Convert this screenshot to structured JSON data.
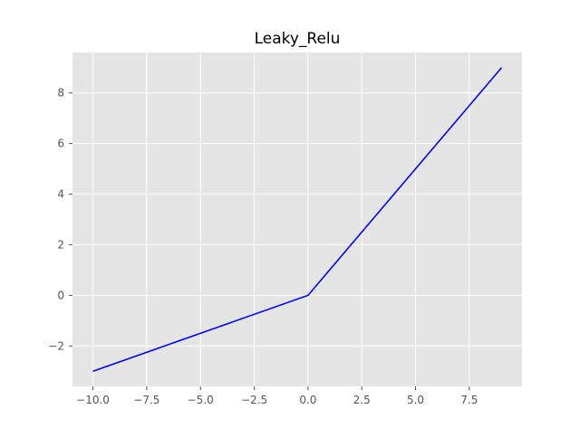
{
  "chart_data": {
    "type": "line",
    "title": "Leaky_Relu",
    "xlabel": "",
    "ylabel": "",
    "x_range": [
      -10.95,
      9.95
    ],
    "y_range": [
      -3.6,
      9.6
    ],
    "x_ticks": [
      -10.0,
      -7.5,
      -5.0,
      -2.5,
      0.0,
      2.5,
      5.0,
      7.5
    ],
    "x_tick_labels": [
      "−10.0",
      "−7.5",
      "−5.0",
      "−2.5",
      "0.0",
      "2.5",
      "5.0",
      "7.5"
    ],
    "y_ticks": [
      -2,
      0,
      2,
      4,
      6,
      8
    ],
    "y_tick_labels": [
      "−2",
      "0",
      "2",
      "4",
      "6",
      "8"
    ],
    "grid": true,
    "legend": "none",
    "series": [
      {
        "color": "#0000ff",
        "x": [
          -10,
          0,
          9
        ],
        "y": [
          -3,
          0,
          9
        ]
      }
    ],
    "style": {
      "plot_background": "#e5e5e5",
      "grid_color": "#ffffff",
      "tick_color": "#555555"
    }
  }
}
